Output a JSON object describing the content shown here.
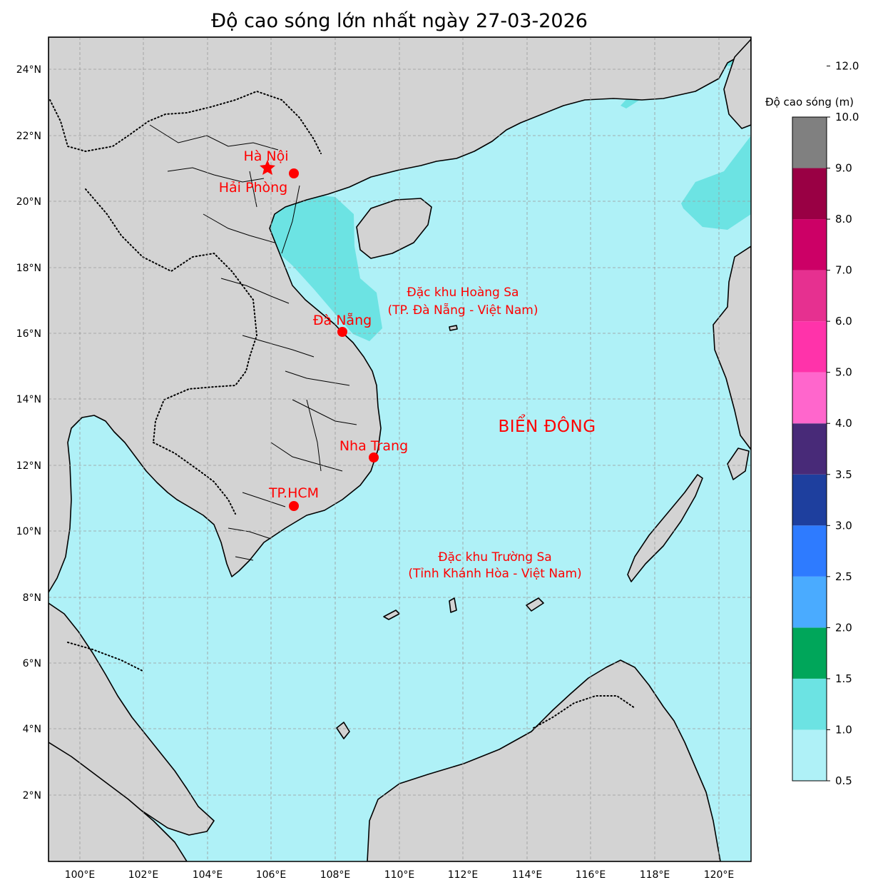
{
  "title": "Độ cao sóng lớn nhất ngày 27-03-2026",
  "map": {
    "lon_range": [
      99,
      121
    ],
    "lat_range": [
      0,
      25
    ],
    "lon_ticks": [
      {
        "value": 100,
        "label": "100°E"
      },
      {
        "value": 102,
        "label": "102°E"
      },
      {
        "value": 104,
        "label": "104°E"
      },
      {
        "value": 106,
        "label": "106°E"
      },
      {
        "value": 108,
        "label": "108°E"
      },
      {
        "value": 110,
        "label": "110°E"
      },
      {
        "value": 112,
        "label": "112°E"
      },
      {
        "value": 114,
        "label": "114°E"
      },
      {
        "value": 116,
        "label": "116°E"
      },
      {
        "value": 118,
        "label": "118°E"
      },
      {
        "value": 120,
        "label": "120°E"
      }
    ],
    "lat_ticks": [
      {
        "value": 2,
        "label": "2°N"
      },
      {
        "value": 4,
        "label": "4°N"
      },
      {
        "value": 6,
        "label": "6°N"
      },
      {
        "value": 8,
        "label": "8°N"
      },
      {
        "value": 10,
        "label": "10°N"
      },
      {
        "value": 12,
        "label": "12°N"
      },
      {
        "value": 14,
        "label": "14°N"
      },
      {
        "value": 16,
        "label": "16°N"
      },
      {
        "value": 18,
        "label": "18°N"
      },
      {
        "value": 20,
        "label": "20°N"
      },
      {
        "value": 22,
        "label": "22°N"
      },
      {
        "value": 24,
        "label": "24°N"
      }
    ],
    "grid": true,
    "colors": {
      "land": "#d3d3d3",
      "sea_base": "#aff1f7",
      "sea_level2": "#6ce3e3",
      "sea_level3": "#00a65a",
      "marker": "#ff0000"
    }
  },
  "cities": [
    {
      "name": "Hà Nội",
      "lon": 105.85,
      "lat": 21.03,
      "marker": "star"
    },
    {
      "name": "Hải Phòng",
      "lon": 106.68,
      "lat": 20.84,
      "marker": "circle"
    },
    {
      "name": "Đà Nẵng",
      "lon": 108.2,
      "lat": 16.06,
      "marker": "circle"
    },
    {
      "name": "Nha Trang",
      "lon": 109.19,
      "lat": 12.24,
      "marker": "circle"
    },
    {
      "name": "TP.HCM",
      "lon": 106.66,
      "lat": 10.78,
      "marker": "circle"
    }
  ],
  "regions": {
    "hoang_sa": {
      "line1": "Đặc khu Hoàng Sa",
      "line2": "(TP. Đà Nẵng - Việt Nam)"
    },
    "truong_sa": {
      "line1": "Đặc khu Trường Sa",
      "line2": "(Tỉnh Khánh Hòa - Việt Nam)"
    },
    "sea_name": "BIỂN ĐÔNG"
  },
  "colorbar": {
    "title": "Độ cao sóng (m)",
    "bounds": [
      0.5,
      1.0,
      1.5,
      2.0,
      2.5,
      3.0,
      3.5,
      4.0,
      5.0,
      6.0,
      7.0,
      8.0,
      9.0,
      10.0,
      12.0
    ],
    "tick_labels": [
      "0.5",
      "1.0",
      "1.5",
      "2.0",
      "2.5",
      "3.0",
      "3.5",
      "4.0",
      "5.0",
      "6.0",
      "7.0",
      "8.0",
      "9.0",
      "10.0",
      "12.0"
    ],
    "colors": [
      "#aff1f7",
      "#6ce3e3",
      "#00a65a",
      "#4aabff",
      "#2e7bff",
      "#1e3f9e",
      "#482a78",
      "#ff66cc",
      "#ff33aa",
      "#e63090",
      "#cc0066",
      "#990044",
      "#808080"
    ]
  }
}
